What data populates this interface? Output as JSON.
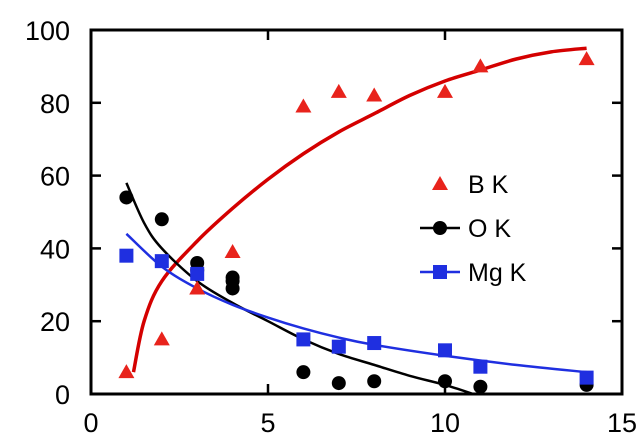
{
  "chart_data": {
    "type": "scatter",
    "title": "",
    "xlabel": "",
    "ylabel": "",
    "xlim": [
      0,
      15
    ],
    "ylim": [
      0,
      100
    ],
    "xticks": [
      "0",
      "5",
      "10",
      "15"
    ],
    "yticks": [
      "0",
      "20",
      "40",
      "60",
      "80",
      "100"
    ],
    "grid": false,
    "legend_position": "right-middle",
    "series": [
      {
        "name": "B K",
        "marker": "triangle",
        "color": "#e8231c",
        "line_color": "#d40000",
        "points": [
          [
            1,
            6
          ],
          [
            2,
            15
          ],
          [
            3,
            29
          ],
          [
            4,
            39
          ],
          [
            6,
            79
          ],
          [
            7,
            83
          ],
          [
            8,
            82
          ],
          [
            10,
            83
          ],
          [
            11,
            90
          ],
          [
            14,
            92
          ]
        ],
        "fit": [
          [
            1.2,
            6
          ],
          [
            1.5,
            20
          ],
          [
            2,
            31
          ],
          [
            3,
            42
          ],
          [
            4,
            51
          ],
          [
            5,
            59
          ],
          [
            6,
            66
          ],
          [
            7,
            72
          ],
          [
            8,
            77
          ],
          [
            9,
            82
          ],
          [
            10,
            86
          ],
          [
            11,
            89
          ],
          [
            12,
            92
          ],
          [
            13,
            94
          ],
          [
            14,
            95
          ]
        ]
      },
      {
        "name": "O K",
        "marker": "circle",
        "color": "#000000",
        "line_color": "#000000",
        "points": [
          [
            1,
            54
          ],
          [
            2,
            48
          ],
          [
            3,
            36
          ],
          [
            3,
            34
          ],
          [
            4,
            32
          ],
          [
            4,
            31
          ],
          [
            4,
            29
          ],
          [
            6,
            6
          ],
          [
            7,
            3
          ],
          [
            8,
            3.5
          ],
          [
            10,
            3.5
          ],
          [
            11,
            2
          ],
          [
            14,
            2.5
          ]
        ],
        "fit": [
          [
            1,
            58
          ],
          [
            1.5,
            47
          ],
          [
            2,
            40
          ],
          [
            3,
            31
          ],
          [
            4,
            25
          ],
          [
            5,
            20
          ],
          [
            6,
            15
          ],
          [
            7,
            11
          ],
          [
            8,
            8
          ],
          [
            9,
            5
          ],
          [
            10,
            2.5
          ],
          [
            10.8,
            0
          ]
        ]
      },
      {
        "name": "Mg K",
        "marker": "square",
        "color": "#1f2fe0",
        "line_color": "#1f2fe0",
        "points": [
          [
            1,
            38
          ],
          [
            2,
            36.5
          ],
          [
            3,
            33
          ],
          [
            6,
            15
          ],
          [
            7,
            13
          ],
          [
            8,
            14
          ],
          [
            10,
            12
          ],
          [
            11,
            7.5
          ],
          [
            14,
            4.5
          ]
        ],
        "fit": [
          [
            1,
            44
          ],
          [
            2,
            35
          ],
          [
            3,
            29
          ],
          [
            4,
            24.5
          ],
          [
            5,
            21
          ],
          [
            6,
            18
          ],
          [
            7,
            15.5
          ],
          [
            8,
            13.5
          ],
          [
            10,
            10.5
          ],
          [
            12,
            8
          ],
          [
            14,
            6
          ]
        ]
      }
    ]
  }
}
